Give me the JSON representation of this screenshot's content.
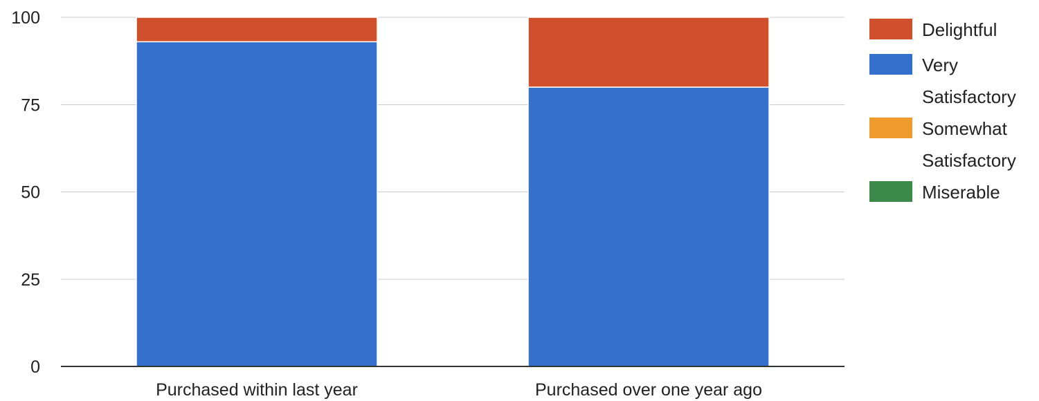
{
  "chart_data": {
    "type": "bar",
    "stacked": true,
    "categories": [
      "Purchased within last year",
      "Purchased over one year ago"
    ],
    "series": [
      {
        "name": "Miserable",
        "color": "#3b8a4a",
        "values": [
          0,
          0
        ]
      },
      {
        "name": "Somewhat Satisfactory",
        "color": "#f09c2c",
        "values": [
          0,
          0
        ]
      },
      {
        "name": "Very Satisfactory",
        "color": "#3471cc",
        "values": [
          93,
          80
        ]
      },
      {
        "name": "Delightful",
        "color": "#d1502c",
        "values": [
          7,
          20
        ]
      }
    ],
    "legend_order": [
      "Delightful",
      "Very Satisfactory",
      "Somewhat Satisfactory",
      "Miserable"
    ],
    "yticks": [
      "0",
      "25",
      "50",
      "75",
      "100"
    ],
    "ylim": [
      0,
      100
    ],
    "grid": true,
    "legend_position": "right",
    "title": "",
    "xlabel": "",
    "ylabel": ""
  }
}
